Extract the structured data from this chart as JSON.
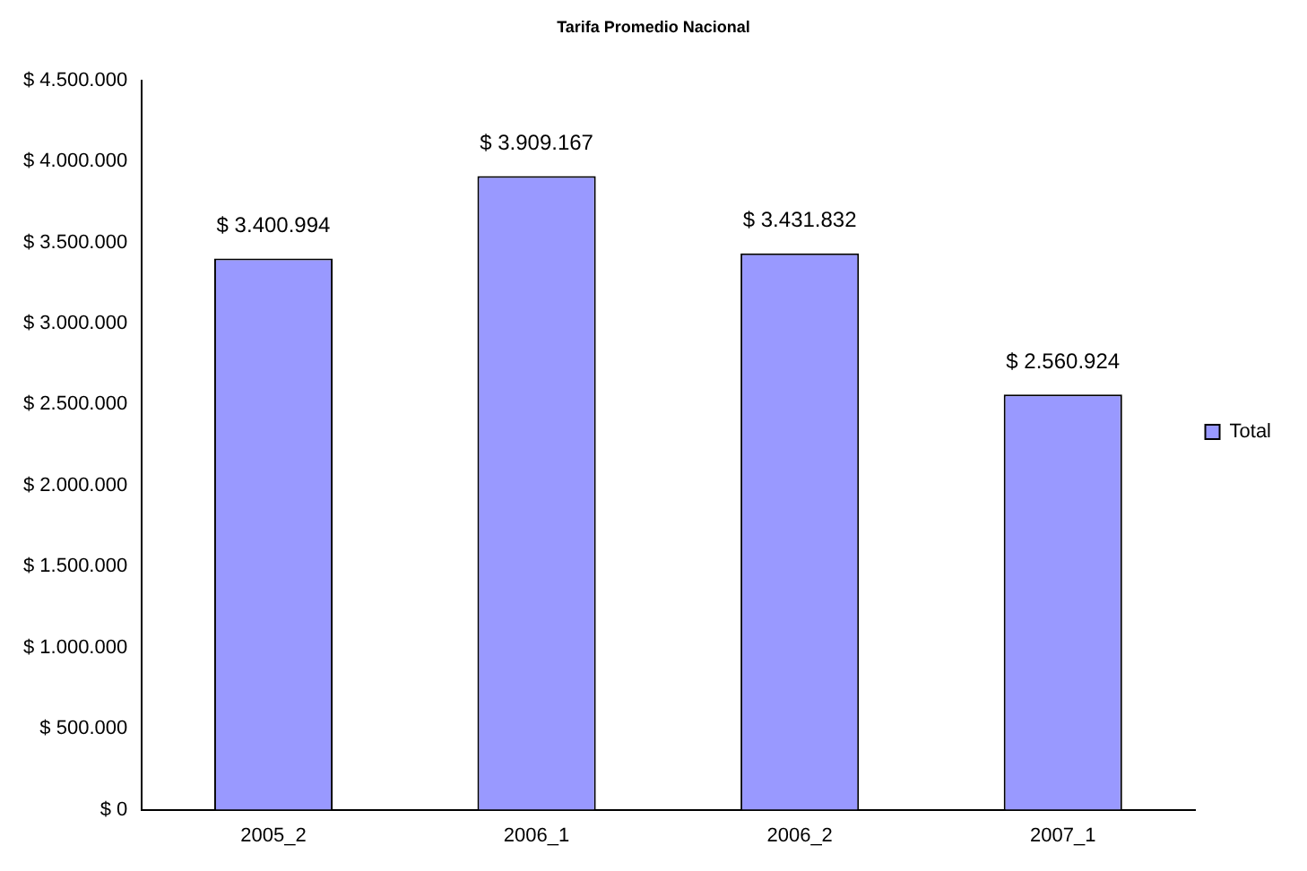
{
  "chart_data": {
    "type": "bar",
    "title": "Tarifa Promedio Nacional",
    "categories": [
      "2005_2",
      "2006_1",
      "2006_2",
      "2007_1"
    ],
    "series": [
      {
        "name": "Total",
        "color": "#9999ff",
        "values": [
          3400994,
          3909167,
          3431832,
          2560924
        ],
        "value_labels": [
          "$ 3.400.994",
          "$ 3.909.167",
          "$ 3.431.832",
          "$ 2.560.924"
        ]
      }
    ],
    "ylim": [
      0,
      4500000
    ],
    "yticks": [
      {
        "value": 0,
        "label": "$ 0"
      },
      {
        "value": 500000,
        "label": "$ 500.000"
      },
      {
        "value": 1000000,
        "label": "$ 1.000.000"
      },
      {
        "value": 1500000,
        "label": "$ 1.500.000"
      },
      {
        "value": 2000000,
        "label": "$ 2.000.000"
      },
      {
        "value": 2500000,
        "label": "$ 2.500.000"
      },
      {
        "value": 3000000,
        "label": "$ 3.000.000"
      },
      {
        "value": 3500000,
        "label": "$ 3.500.000"
      },
      {
        "value": 4000000,
        "label": "$ 4.000.000"
      },
      {
        "value": 4500000,
        "label": "$ 4.500.000"
      }
    ],
    "grid": false,
    "legend": "right"
  }
}
